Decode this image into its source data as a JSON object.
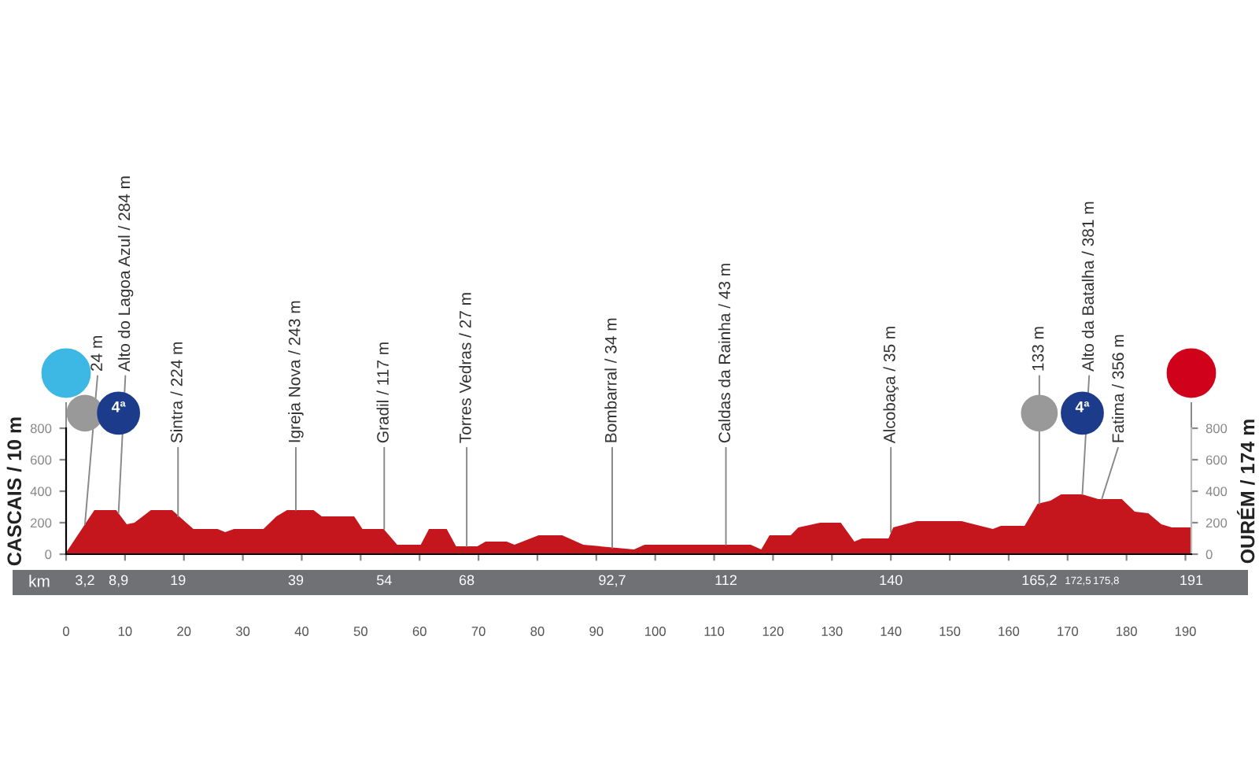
{
  "chart_data": {
    "type": "area",
    "ylabel": "CASCAIS / 10 m",
    "y2label": "OURÉM / 174 m",
    "x": [
      0,
      4.8,
      8.5,
      10.3,
      11.6,
      14.4,
      18,
      21.6,
      25.7,
      27,
      28.5,
      33.5,
      35.7,
      37.5,
      42,
      43.4,
      48.9,
      50.3,
      53.9,
      56.2,
      60.2,
      61.6,
      64.6,
      66.2,
      69.8,
      71.2,
      74.8,
      76.1,
      80.2,
      84.2,
      87.8,
      96.4,
      98.2,
      116.2,
      118,
      119.4,
      123,
      124.3,
      128,
      131.5,
      133.8,
      135.1,
      137.2,
      139.6,
      140.4,
      144.4,
      152,
      157.3,
      158.7,
      162.7,
      164.9,
      167.1,
      168.9,
      172.5,
      175.2,
      179.2,
      181.4,
      183.7,
      185.9,
      187.7,
      191
    ],
    "series": [
      {
        "color": "#c4161c",
        "values": [
          10,
          280,
          280,
          190,
          200,
          280,
          280,
          160,
          160,
          140,
          160,
          160,
          240,
          280,
          280,
          240,
          240,
          160,
          160,
          60,
          60,
          160,
          160,
          50,
          50,
          80,
          80,
          60,
          120,
          120,
          60,
          30,
          60,
          60,
          30,
          120,
          120,
          170,
          200,
          200,
          80,
          100,
          100,
          100,
          170,
          210,
          210,
          160,
          180,
          180,
          320,
          340,
          380,
          380,
          350,
          350,
          270,
          260,
          190,
          170,
          170
        ]
      }
    ],
    "xlim": [
      0,
      191
    ],
    "xticks": [
      0,
      10,
      20,
      30,
      40,
      50,
      60,
      70,
      80,
      90,
      100,
      110,
      120,
      130,
      140,
      150,
      160,
      170,
      180,
      190
    ],
    "x2lim": [
      0,
      191
    ],
    "x2ticks": [
      {
        "value": 3.2,
        "label": "3,2"
      },
      {
        "value": 8.9,
        "label": "8,9"
      },
      19,
      39,
      54,
      68,
      {
        "value": 92.7,
        "label": "92,7"
      },
      112,
      140,
      {
        "value": 165.2,
        "label": "165,2"
      },
      {
        "value": 172.5,
        "label": "172,5"
      },
      {
        "value": 175.8,
        "label": "175,8"
      },
      191
    ],
    "ylim": [
      0,
      800
    ],
    "yticks": [
      0,
      200,
      400,
      600,
      800
    ],
    "y2lim": [
      0,
      800
    ],
    "y2ticks": [
      0,
      200,
      400,
      600,
      800
    ],
    "grid": false,
    "annotations": [
      {
        "text": "24 m",
        "x": 3.2,
        "y": 190
      },
      {
        "text": "Alto do Lagoa Azul / 284 m",
        "x": 8.9,
        "y": 260
      },
      {
        "text": "Sintra / 224 m",
        "x": 19,
        "y": 240
      },
      {
        "text": "Igreja Nova / 243 m",
        "x": 39,
        "y": 280
      },
      {
        "text": "Gradil / 117 m",
        "x": 54,
        "y": 160
      },
      {
        "text": "Torres Vedras / 27 m",
        "x": 68,
        "y": 50
      },
      {
        "text": "Bombarral / 34 m",
        "x": 92.7,
        "y": 40
      },
      {
        "text": "Caldas da Rainha / 43 m",
        "x": 112,
        "y": 60
      },
      {
        "text": "Alcobaça / 35 m",
        "x": 140,
        "y": 140
      },
      {
        "text": "133 m",
        "x": 165.2,
        "y": 320
      },
      {
        "text": "Alto da Batalha / 381 m",
        "x": 172.5,
        "y": 380
      },
      {
        "text": "Fatima / 356 m",
        "x": 175.8,
        "y": 350
      },
      "km",
      "4ª",
      "4ª"
    ]
  }
}
